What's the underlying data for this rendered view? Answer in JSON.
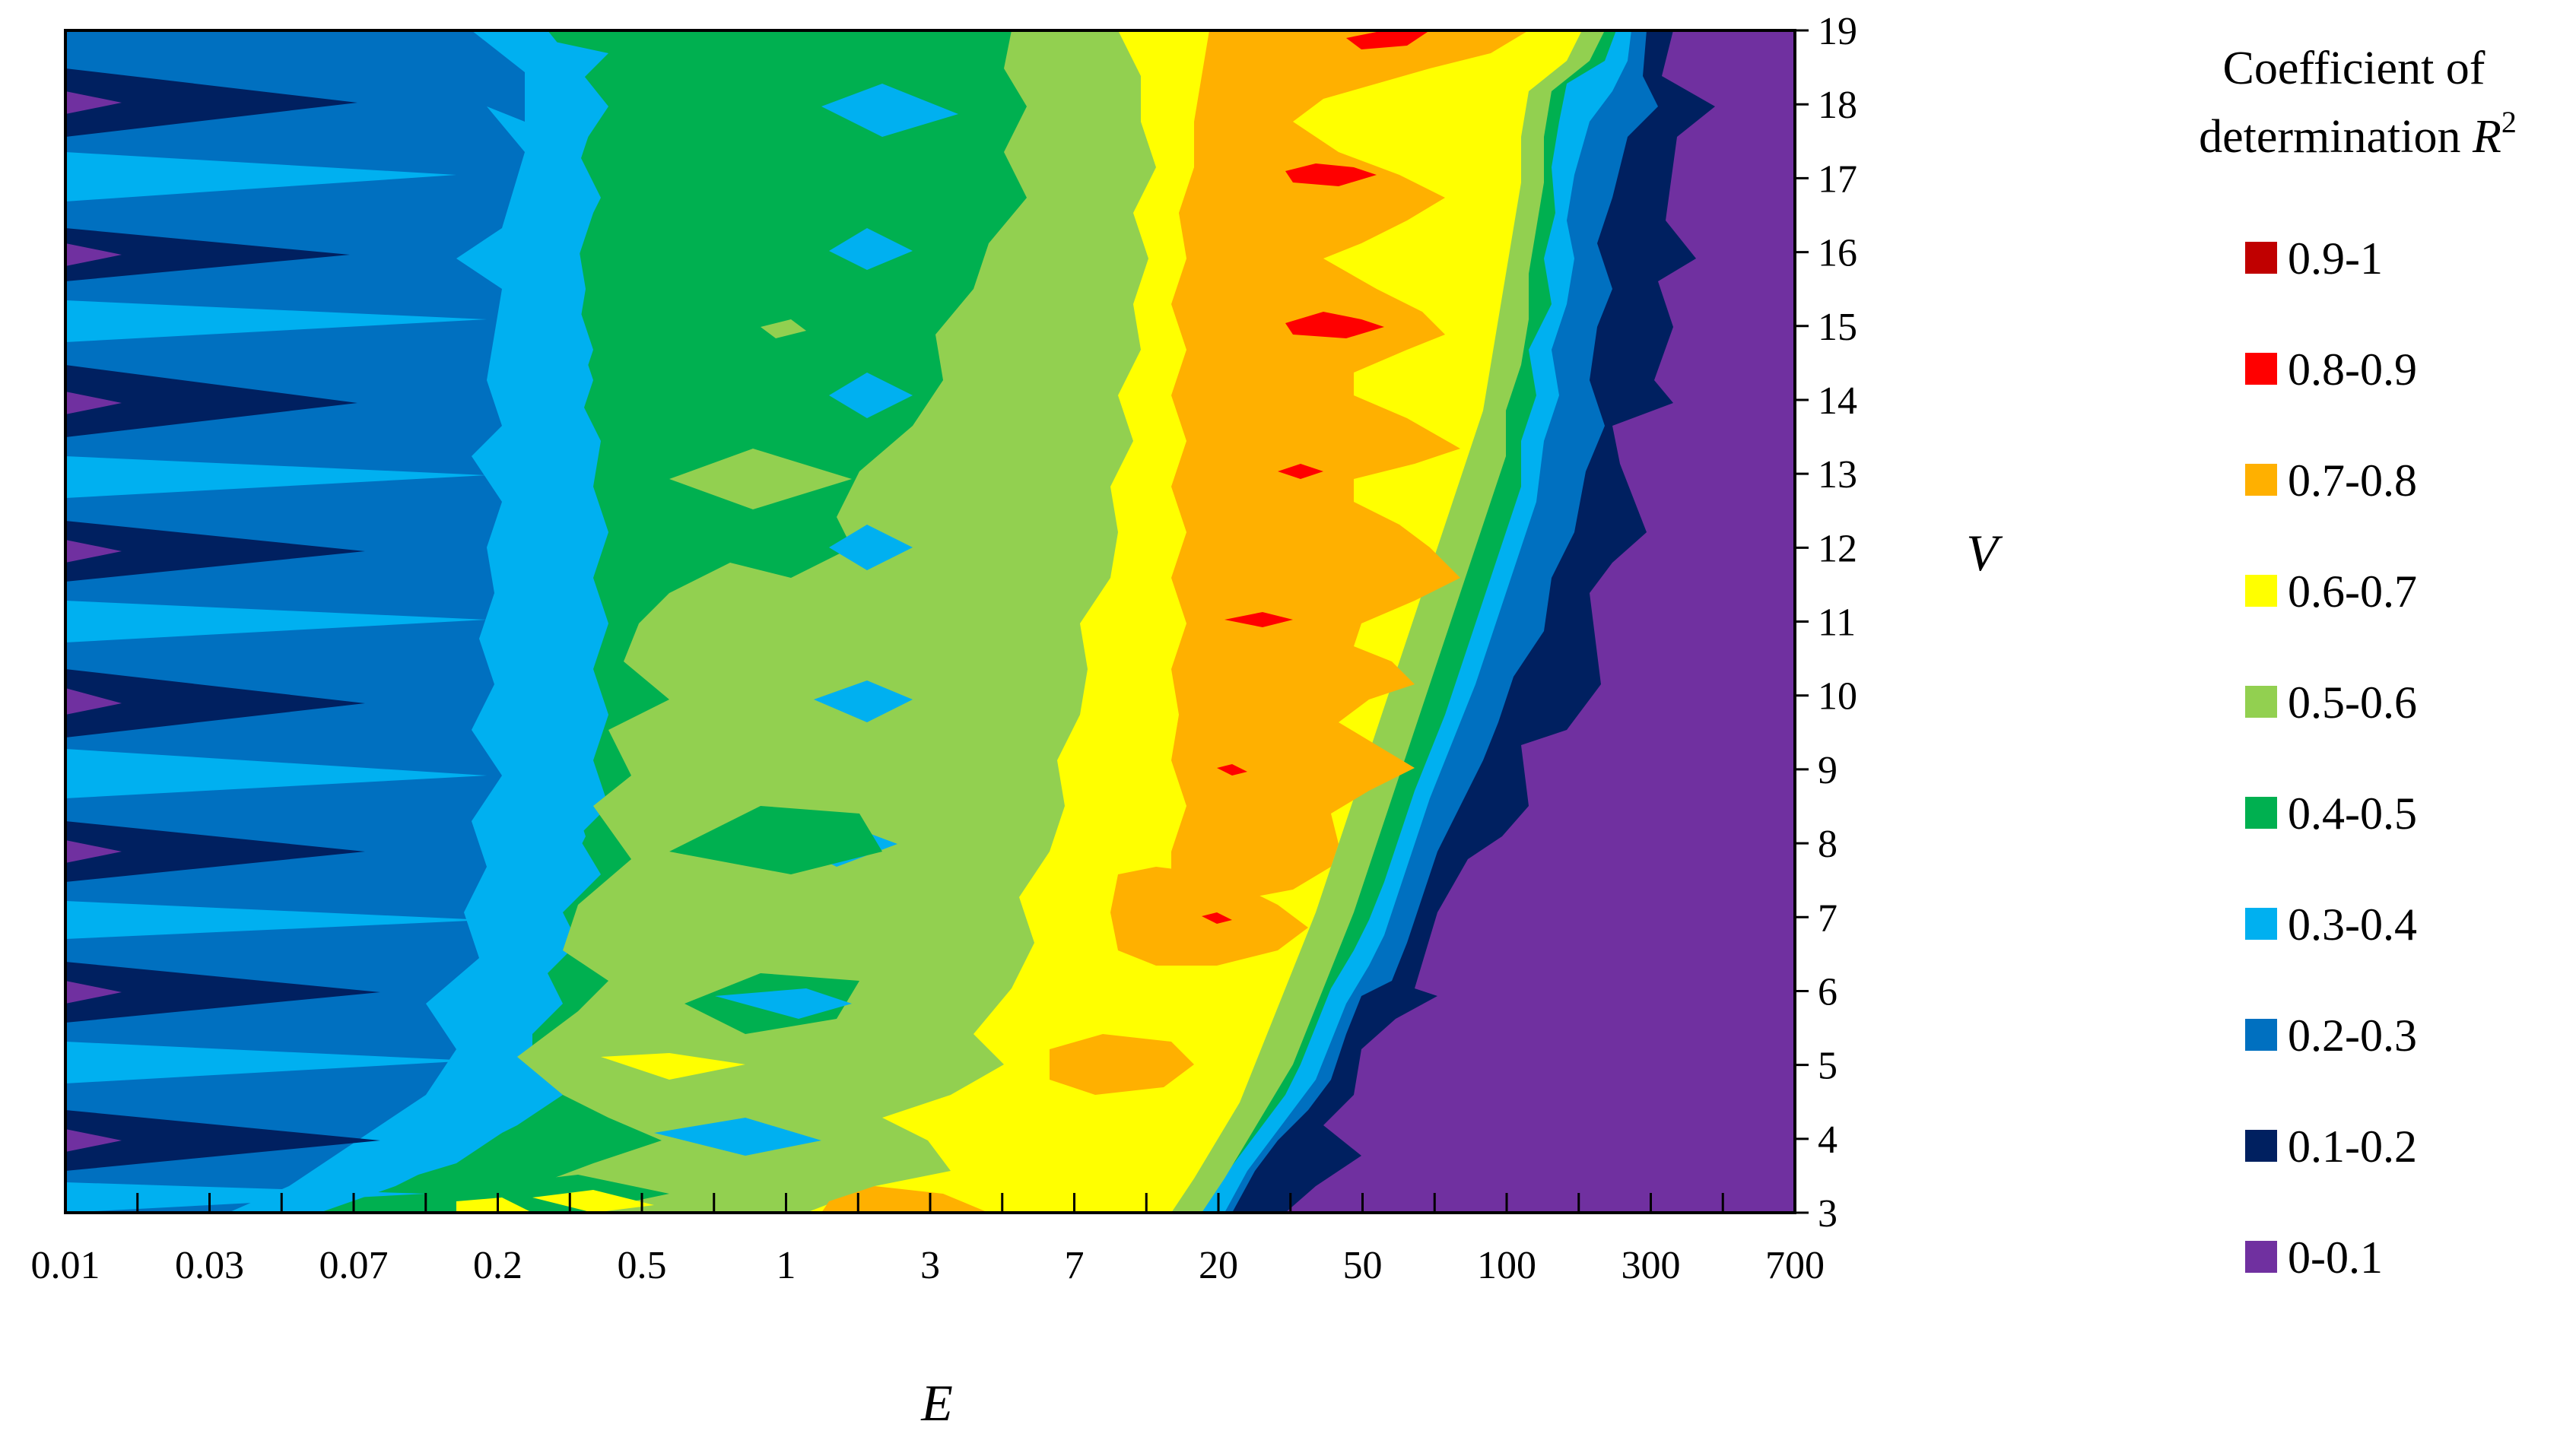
{
  "chart_data": {
    "type": "heatmap",
    "subtype": "filled-contour",
    "xlabel": "E",
    "ylabel": "V",
    "x_scale": "categorical-log-like",
    "x_ticks": [
      "0.01",
      "0.03",
      "0.07",
      "0.2",
      "0.5",
      "1",
      "3",
      "7",
      "20",
      "50",
      "100",
      "300",
      "700"
    ],
    "y_ticks": [
      3,
      4,
      5,
      6,
      7,
      8,
      9,
      10,
      11,
      12,
      13,
      14,
      15,
      16,
      17,
      18,
      19
    ],
    "ylim": [
      3,
      19
    ],
    "y_axis_side": "right",
    "grid": false,
    "legend": {
      "title_line1": "Coefficient of",
      "title_line2_text": "determination ",
      "title_line2_symbol": "R",
      "title_line2_sup": "2",
      "placement": "right",
      "entries": [
        {
          "label": "0.9-1",
          "color": "#c00000"
        },
        {
          "label": "0.8-0.9",
          "color": "#ff0000"
        },
        {
          "label": "0.7-0.8",
          "color": "#ffb000"
        },
        {
          "label": "0.6-0.7",
          "color": "#ffff00"
        },
        {
          "label": "0.5-0.6",
          "color": "#92d050"
        },
        {
          "label": "0.4-0.5",
          "color": "#00b050"
        },
        {
          "label": "0.3-0.4",
          "color": "#00b0f0"
        },
        {
          "label": "0.2-0.3",
          "color": "#0070c0"
        },
        {
          "label": "0.1-0.2",
          "color": "#002060"
        },
        {
          "label": "0-0.1",
          "color": "#7030a0"
        }
      ]
    },
    "bands_by_x": [
      {
        "x_from": "0.01",
        "x_to": "0.2",
        "r2_range": "0-0.4",
        "note_colors": [
          "#7030a0",
          "#002060",
          "#0070c0",
          "#00b0f0"
        ]
      },
      {
        "x_from": "0.2",
        "x_to": "1",
        "r2_range": "0.3-0.6"
      },
      {
        "x_from": "1",
        "x_to": "7",
        "r2_range": "0.3-0.6"
      },
      {
        "x_from": "7",
        "x_to": "100",
        "r2_range": "0.5-1"
      },
      {
        "x_from": "100",
        "x_to": "700",
        "r2_range": "0-0.2"
      }
    ]
  }
}
